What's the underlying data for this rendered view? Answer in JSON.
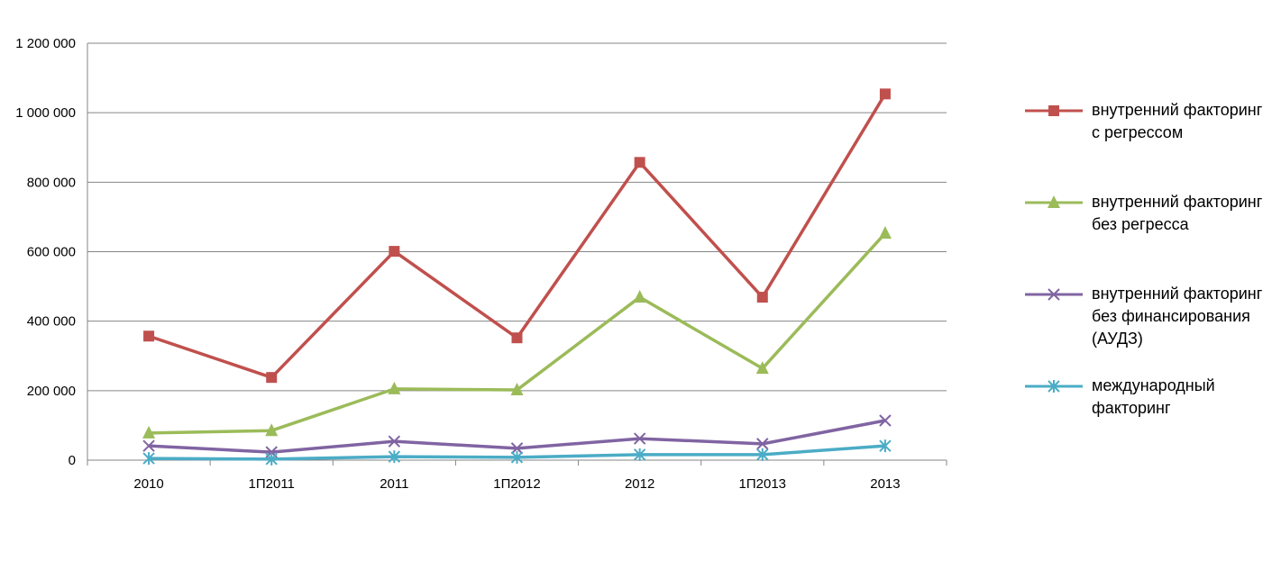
{
  "chart_data": {
    "type": "line",
    "title": "",
    "xlabel": "",
    "ylabel": "",
    "categories": [
      "2010",
      "1П2011",
      "2011",
      "1П2012",
      "2012",
      "1П2013",
      "2013"
    ],
    "ylim": [
      0,
      1200000
    ],
    "yticks": [
      0,
      200000,
      400000,
      600000,
      800000,
      1000000,
      1200000
    ],
    "ytick_labels": [
      "0",
      "200 000",
      "400 000",
      "600 000",
      "800 000",
      "1 000 000",
      "1 200 000"
    ],
    "grid": true,
    "legend_position": "right",
    "series": [
      {
        "name": "внутренний факторинг с регрессом",
        "name_lines": [
          "внутренний факторинг",
          "с регрессом"
        ],
        "color": "#C0504D",
        "marker": "square",
        "values": [
          357000,
          238000,
          601000,
          352000,
          857000,
          469000,
          1054000
        ]
      },
      {
        "name": "внутренний факторинг без регресса",
        "name_lines": [
          "внутренний факторинг",
          "без регресса"
        ],
        "color": "#9BBB59",
        "marker": "triangle",
        "values": [
          78000,
          85000,
          205000,
          202000,
          469000,
          264000,
          653000
        ]
      },
      {
        "name": "внутренний факторинг без финансирования (АУДЗ)",
        "name_lines": [
          "внутренний факторинг",
          "без финансирования",
          "(АУДЗ)"
        ],
        "color": "#8064A2",
        "marker": "x",
        "values": [
          41000,
          23000,
          54000,
          34000,
          62000,
          47000,
          114000
        ]
      },
      {
        "name": "международный факторинг",
        "name_lines": [
          "международный",
          "факторинг"
        ],
        "color": "#4BACC6",
        "marker": "star",
        "values": [
          5000,
          3000,
          10000,
          8000,
          16000,
          16000,
          41000
        ]
      }
    ]
  }
}
